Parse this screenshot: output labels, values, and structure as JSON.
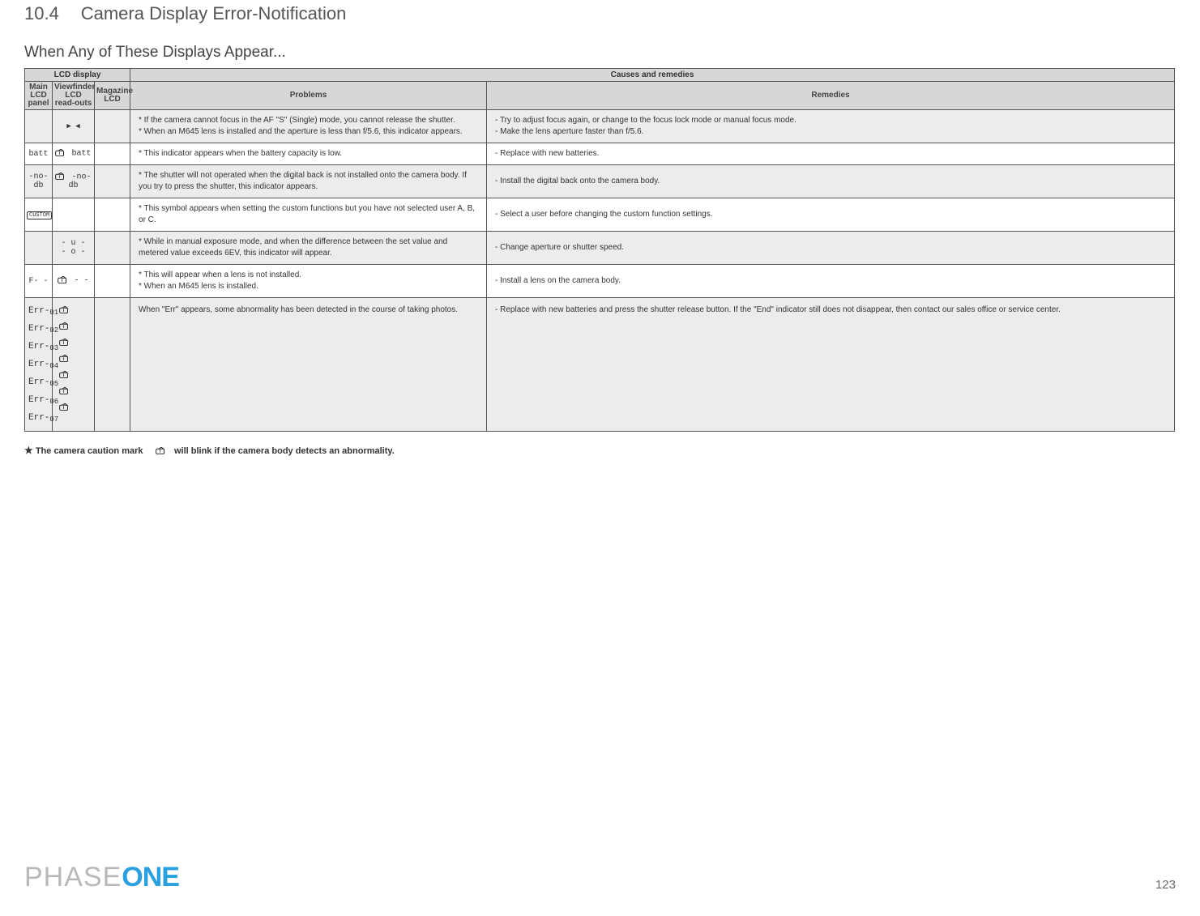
{
  "section": {
    "number": "10.4",
    "title": "Camera Display Error-Notification"
  },
  "subhead": "When Any of These Displays Appear...",
  "table": {
    "head": {
      "lcd_display": "LCD display",
      "causes": "Causes and remedies",
      "main_lcd": "Main LCD panel",
      "viewfinder": "Viewfinder LCD read-outs",
      "magazine": "Magazine LCD",
      "problems": "Problems",
      "remedies": "Remedies"
    },
    "rows": [
      {
        "main": "",
        "vf": "▶  ◀",
        "mag": "",
        "problem": "* If the camera cannot focus in the  AF \"S\" (Single) mode, you cannot release the shutter.\n* When an M645 lens is installed and the aperture is less than f/5.6, this indicator appears.",
        "remedy": "- Try to adjust focus again, or change to the focus lock mode or manual focus mode.\n- Make the lens aperture faster than f/5.6.",
        "gray": true
      },
      {
        "main": "batt",
        "vf_icon": true,
        "vf": "batt",
        "mag": "",
        "problem": "* This indicator appears when the battery capacity is low.",
        "remedy": "- Replace with new batteries.",
        "gray": false
      },
      {
        "main": "-no-\ndb",
        "vf_icon": true,
        "vf": "-no-\ndb",
        "mag": "",
        "problem": "* The shutter will not operated when the digital back is not installed onto the camera body. If you try to press the shutter, this indicator appears.",
        "remedy": "- Install the digital back onto the camera body.",
        "gray": true
      },
      {
        "main_custom_icon": true,
        "main": "",
        "vf": "",
        "mag": "",
        "problem": "* This symbol appears when setting the custom functions but you have not selected user A, B, or C.",
        "remedy": "- Select a user before changing the custom function settings.",
        "gray": false
      },
      {
        "main": "",
        "vf": "- u -\n- o -",
        "mag": "",
        "problem": "* While in manual exposure mode, and when the difference between the set value and metered value exceeds 6EV, this indicator will appear.",
        "remedy": "- Change aperture or shutter speed.",
        "gray": true
      },
      {
        "main": "F- -",
        "vf_icon": true,
        "vf": "-   -",
        "mag": "",
        "problem": "* This will appear when a lens is not installed.\n* When an M645 lens is installed.",
        "remedy": "- Install a lens on the camera body.",
        "gray": false
      },
      {
        "err_list": [
          "Err-01",
          "Err-02",
          "Err-03",
          "Err-04",
          "Err-05",
          "Err-06",
          "Err-07"
        ],
        "vf_err_icons": 7,
        "mag": "",
        "problem": "  When \"Err\" appears, some abnormality has been detected in the course of taking photos.",
        "remedy": "- Replace with new batteries and press the shutter release button. If the \"End\" indicator still does not disappear,  then contact our sales office or service center.",
        "gray": true
      }
    ]
  },
  "footnote": {
    "prefix": "The camera caution mark",
    "suffix": "will blink if the camera body detects an abnormality."
  },
  "logo": {
    "phase": "PHASE",
    "one": "ONE"
  },
  "page_number": "123",
  "colors": {
    "header_bg": "#d7d7d7",
    "row_gray": "#ececec",
    "border": "#555555",
    "logo_gray": "#b8b8b8",
    "logo_blue": "#2aa0df"
  }
}
